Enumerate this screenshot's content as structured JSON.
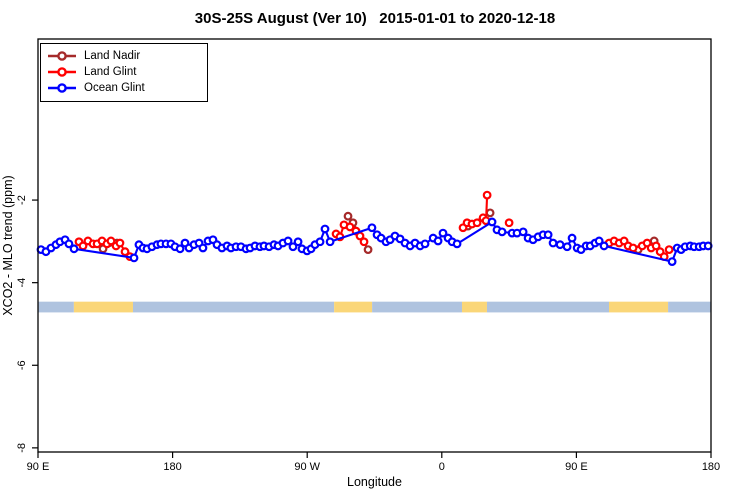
{
  "chart_data": {
    "type": "line-scatter",
    "title": "30S-25S August (Ver 10)   2015-01-01 to 2020-12-18",
    "xlabel": "Longitude",
    "ylabel": "XCO2 - MLO trend (ppm)",
    "grid": false,
    "legend_position": "top-left",
    "x_range": [
      90,
      540
    ],
    "y_range": [
      -8.1,
      1.9
    ],
    "x_ticks": [
      {
        "pos": 90,
        "label": "90 E"
      },
      {
        "pos": 180,
        "label": "180"
      },
      {
        "pos": 270,
        "label": "90 W"
      },
      {
        "pos": 360,
        "label": "0"
      },
      {
        "pos": 450,
        "label": "90 E"
      },
      {
        "pos": 540,
        "label": "180"
      }
    ],
    "y_ticks": [
      {
        "pos": -2,
        "label": "-2"
      },
      {
        "pos": -4,
        "label": "-4"
      },
      {
        "pos": -6,
        "label": "-6"
      },
      {
        "pos": -8,
        "label": "-8"
      }
    ],
    "series": [
      {
        "name": "Land Nadir",
        "color": "#A52A2A",
        "segments": [
          [
            [
              133.5,
              -3.18
            ],
            [
              142.8,
              -3.04
            ]
          ],
          [
            [
              297.3,
              -2.39
            ],
            [
              300.6,
              -2.55
            ],
            [
              310.7,
              -3.2
            ]
          ],
          [
            [
              377.5,
              -2.63
            ],
            [
              392.3,
              -2.31
            ]
          ],
          [
            [
              491.3,
              -3.2
            ],
            [
              502.0,
              -2.99
            ]
          ]
        ]
      },
      {
        "name": "Land Glint",
        "color": "#FF0000",
        "segments": [
          [
            [
              117.4,
              -3.01
            ],
            [
              120.1,
              -3.11
            ],
            [
              123.4,
              -2.99
            ],
            [
              126.8,
              -3.06
            ],
            [
              129.5,
              -3.06
            ],
            [
              132.8,
              -2.99
            ],
            [
              136.1,
              -3.06
            ],
            [
              138.8,
              -2.99
            ],
            [
              142.2,
              -3.11
            ],
            [
              144.8,
              -3.04
            ],
            [
              148.2,
              -3.25
            ],
            [
              151.5,
              -3.37
            ]
          ],
          [
            [
              289.3,
              -2.82
            ],
            [
              291.9,
              -2.89
            ],
            [
              294.6,
              -2.6
            ],
            [
              298.6,
              -2.65
            ],
            [
              302.6,
              -2.75
            ],
            [
              305.3,
              -2.87
            ],
            [
              308.0,
              -3.01
            ]
          ],
          [
            [
              374.2,
              -2.67
            ],
            [
              376.9,
              -2.55
            ],
            [
              380.2,
              -2.58
            ],
            [
              383.6,
              -2.55
            ],
            [
              387.6,
              -2.43
            ],
            [
              389.6,
              -2.5
            ],
            [
              390.3,
              -1.88
            ]
          ],
          [
            [
              405.0,
              -2.55
            ]
          ],
          [
            [
              471.9,
              -3.04
            ],
            [
              475.2,
              -2.99
            ],
            [
              478.6,
              -3.04
            ],
            [
              481.9,
              -2.99
            ],
            [
              484.6,
              -3.11
            ],
            [
              487.9,
              -3.16
            ],
            [
              494.0,
              -3.11
            ],
            [
              497.3,
              -3.04
            ],
            [
              500.0,
              -3.16
            ],
            [
              503.3,
              -3.11
            ],
            [
              506.0,
              -3.25
            ],
            [
              508.7,
              -3.37
            ],
            [
              512.0,
              -3.2
            ]
          ]
        ]
      },
      {
        "name": "Ocean Glint",
        "color": "#0000FF",
        "segments": [
          [
            [
              92.0,
              -3.2
            ],
            [
              95.3,
              -3.25
            ],
            [
              98.7,
              -3.16
            ],
            [
              102.0,
              -3.08
            ],
            [
              104.7,
              -3.01
            ],
            [
              108.1,
              -2.96
            ],
            [
              110.7,
              -3.06
            ],
            [
              114.1,
              -3.18
            ],
            [
              154.2,
              -3.4
            ],
            [
              157.5,
              -3.08
            ],
            [
              160.2,
              -3.16
            ],
            [
              162.9,
              -3.18
            ],
            [
              166.2,
              -3.13
            ],
            [
              169.6,
              -3.08
            ],
            [
              172.2,
              -3.06
            ],
            [
              175.6,
              -3.06
            ],
            [
              178.9,
              -3.06
            ],
            [
              181.6,
              -3.13
            ],
            [
              185.0,
              -3.18
            ],
            [
              188.3,
              -3.04
            ],
            [
              191.0,
              -3.16
            ],
            [
              194.3,
              -3.08
            ],
            [
              197.7,
              -3.04
            ],
            [
              200.3,
              -3.16
            ],
            [
              203.7,
              -2.99
            ],
            [
              207.0,
              -2.96
            ],
            [
              209.7,
              -3.08
            ],
            [
              213.0,
              -3.16
            ],
            [
              216.4,
              -3.11
            ],
            [
              219.0,
              -3.16
            ],
            [
              222.4,
              -3.13
            ],
            [
              225.7,
              -3.13
            ],
            [
              229.1,
              -3.18
            ],
            [
              231.8,
              -3.16
            ],
            [
              235.1,
              -3.11
            ],
            [
              238.4,
              -3.13
            ],
            [
              241.1,
              -3.11
            ],
            [
              244.5,
              -3.13
            ],
            [
              247.8,
              -3.08
            ],
            [
              250.5,
              -3.11
            ],
            [
              253.8,
              -3.04
            ],
            [
              257.2,
              -2.99
            ],
            [
              260.5,
              -3.13
            ],
            [
              263.9,
              -3.01
            ],
            [
              266.5,
              -3.18
            ],
            [
              269.9,
              -3.23
            ],
            [
              272.6,
              -3.18
            ],
            [
              275.2,
              -3.08
            ],
            [
              278.6,
              -3.01
            ],
            [
              281.9,
              -2.7
            ],
            [
              285.3,
              -3.01
            ],
            [
              313.3,
              -2.67
            ],
            [
              316.7,
              -2.84
            ],
            [
              319.4,
              -2.92
            ],
            [
              322.7,
              -3.01
            ],
            [
              325.4,
              -2.96
            ],
            [
              328.7,
              -2.87
            ],
            [
              332.1,
              -2.94
            ],
            [
              335.4,
              -3.04
            ],
            [
              338.8,
              -3.11
            ],
            [
              342.1,
              -3.04
            ],
            [
              345.5,
              -3.11
            ],
            [
              348.8,
              -3.06
            ],
            [
              354.2,
              -2.92
            ],
            [
              357.5,
              -2.99
            ],
            [
              360.8,
              -2.8
            ],
            [
              364.2,
              -2.92
            ],
            [
              366.9,
              -3.01
            ],
            [
              370.2,
              -3.06
            ],
            [
              393.6,
              -2.53
            ],
            [
              396.9,
              -2.72
            ],
            [
              400.3,
              -2.77
            ],
            [
              407.0,
              -2.8
            ],
            [
              410.3,
              -2.8
            ],
            [
              414.4,
              -2.77
            ],
            [
              417.7,
              -2.92
            ],
            [
              421.0,
              -2.96
            ],
            [
              424.4,
              -2.89
            ],
            [
              427.7,
              -2.84
            ],
            [
              431.1,
              -2.84
            ],
            [
              434.4,
              -3.04
            ],
            [
              439.1,
              -3.08
            ],
            [
              443.8,
              -3.13
            ],
            [
              447.1,
              -2.92
            ],
            [
              450.5,
              -3.16
            ],
            [
              453.1,
              -3.2
            ],
            [
              456.5,
              -3.11
            ],
            [
              459.2,
              -3.11
            ],
            [
              462.5,
              -3.04
            ],
            [
              465.2,
              -2.99
            ],
            [
              468.5,
              -3.11
            ],
            [
              514.0,
              -3.49
            ],
            [
              517.4,
              -3.16
            ],
            [
              520.0,
              -3.2
            ],
            [
              522.7,
              -3.13
            ],
            [
              526.1,
              -3.11
            ],
            [
              528.7,
              -3.13
            ],
            [
              532.1,
              -3.13
            ],
            [
              534.8,
              -3.11
            ],
            [
              538.1,
              -3.11
            ]
          ]
        ]
      }
    ],
    "surface_band": {
      "y_top": -4.46,
      "y_bottom": -4.72,
      "colors": {
        "ocean": "#AFC3DF",
        "land": "#FAD678"
      },
      "segments": [
        {
          "from": 90,
          "to": 114,
          "type": "ocean"
        },
        {
          "from": 114,
          "to": 153.5,
          "type": "land"
        },
        {
          "from": 153.5,
          "to": 288,
          "type": "ocean"
        },
        {
          "from": 288,
          "to": 313.4,
          "type": "land"
        },
        {
          "from": 313.4,
          "to": 373.5,
          "type": "ocean"
        },
        {
          "from": 373.5,
          "to": 390.2,
          "type": "land"
        },
        {
          "from": 390.2,
          "to": 471.8,
          "type": "ocean"
        },
        {
          "from": 471.8,
          "to": 511.3,
          "type": "land"
        },
        {
          "from": 511.3,
          "to": 540,
          "type": "ocean"
        }
      ]
    }
  }
}
